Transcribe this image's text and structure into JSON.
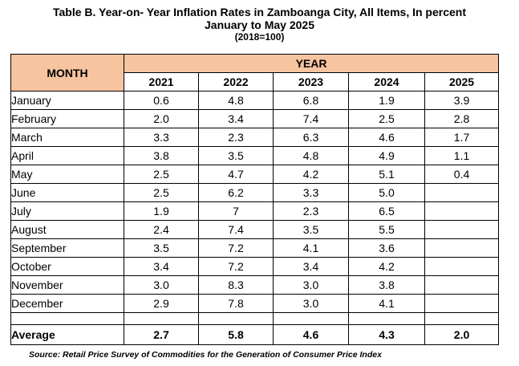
{
  "title": {
    "line1": "Table B. Year-on- Year Inflation Rates in Zamboanga City, All Items, In percent",
    "line2": "January to May 2025",
    "line3": "(2018=100)"
  },
  "table": {
    "month_header": "MONTH",
    "year_header": "YEAR",
    "years": [
      "2021",
      "2022",
      "2023",
      "2024",
      "2025"
    ],
    "rows": [
      {
        "month": "January",
        "values": [
          "0.6",
          "4.8",
          "6.8",
          "1.9",
          "3.9"
        ]
      },
      {
        "month": "February",
        "values": [
          "2.0",
          "3.4",
          "7.4",
          "2.5",
          "2.8"
        ]
      },
      {
        "month": "March",
        "values": [
          "3.3",
          "2.3",
          "6.3",
          "4.6",
          "1.7"
        ]
      },
      {
        "month": "April",
        "values": [
          "3.8",
          "3.5",
          "4.8",
          "4.9",
          "1.1"
        ]
      },
      {
        "month": "May",
        "values": [
          "2.5",
          "4.7",
          "4.2",
          "5.1",
          "0.4"
        ]
      },
      {
        "month": "June",
        "values": [
          "2.5",
          "6.2",
          "3.3",
          "5.0",
          ""
        ]
      },
      {
        "month": "July",
        "values": [
          "1.9",
          "7",
          "2.3",
          "6.5",
          ""
        ]
      },
      {
        "month": "August",
        "values": [
          "2.4",
          "7.4",
          "3.5",
          "5.5",
          ""
        ]
      },
      {
        "month": "September",
        "values": [
          "3.5",
          "7.2",
          "4.1",
          "3.6",
          ""
        ]
      },
      {
        "month": "October",
        "values": [
          "3.4",
          "7.2",
          "3.4",
          "4.2",
          ""
        ]
      },
      {
        "month": "November",
        "values": [
          "3.0",
          "8.3",
          "3.0",
          "3.8",
          ""
        ]
      },
      {
        "month": "December",
        "values": [
          "2.9",
          "7.8",
          "3.0",
          "4.1",
          ""
        ]
      }
    ],
    "average": {
      "label": "Average",
      "values": [
        "2.7",
        "5.8",
        "4.6",
        "4.3",
        "2.0"
      ]
    }
  },
  "source": "Source: Retail Price Survey of Commodities for the Generation of Consumer Price Index",
  "colors": {
    "header_fill": "#f7c4a0"
  }
}
